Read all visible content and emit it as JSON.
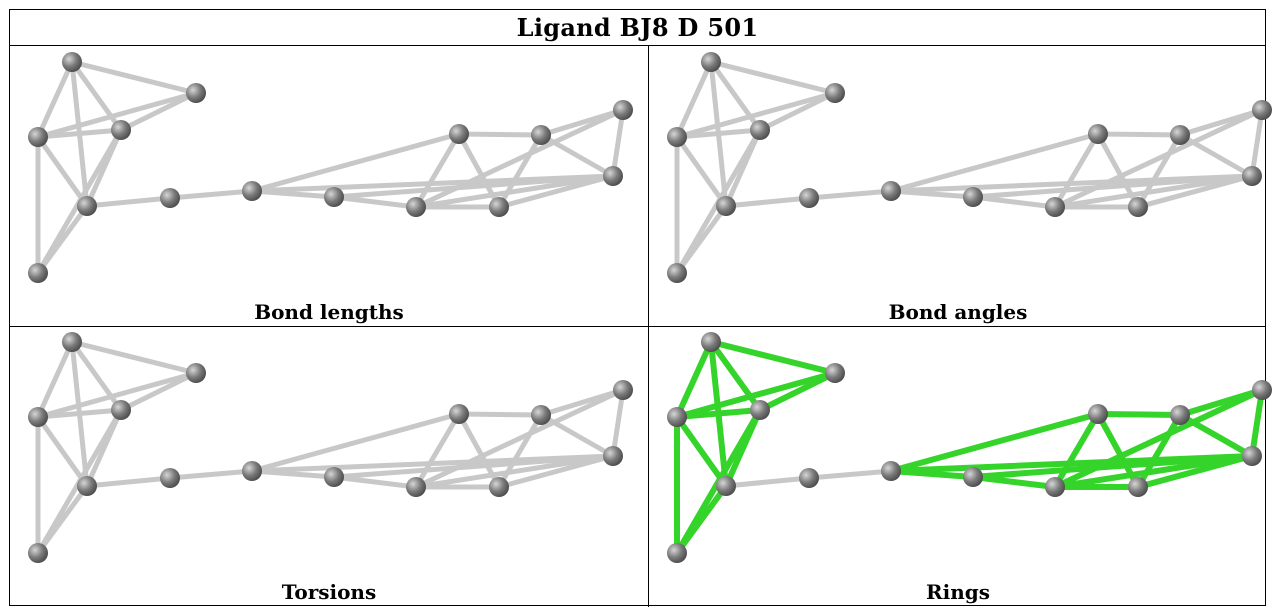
{
  "title": "Ligand BJ8 D 501",
  "colors": {
    "atom": "#7a7a7a",
    "bond_default": "#c8c8c8",
    "bond_highlight": "#35d42a"
  },
  "panels": [
    {
      "caption": "Bond lengths",
      "highlight": "none"
    },
    {
      "caption": "Bond angles",
      "highlight": "none"
    },
    {
      "caption": "Torsions",
      "highlight": "none"
    },
    {
      "caption": "Rings",
      "highlight": "rings"
    }
  ]
}
